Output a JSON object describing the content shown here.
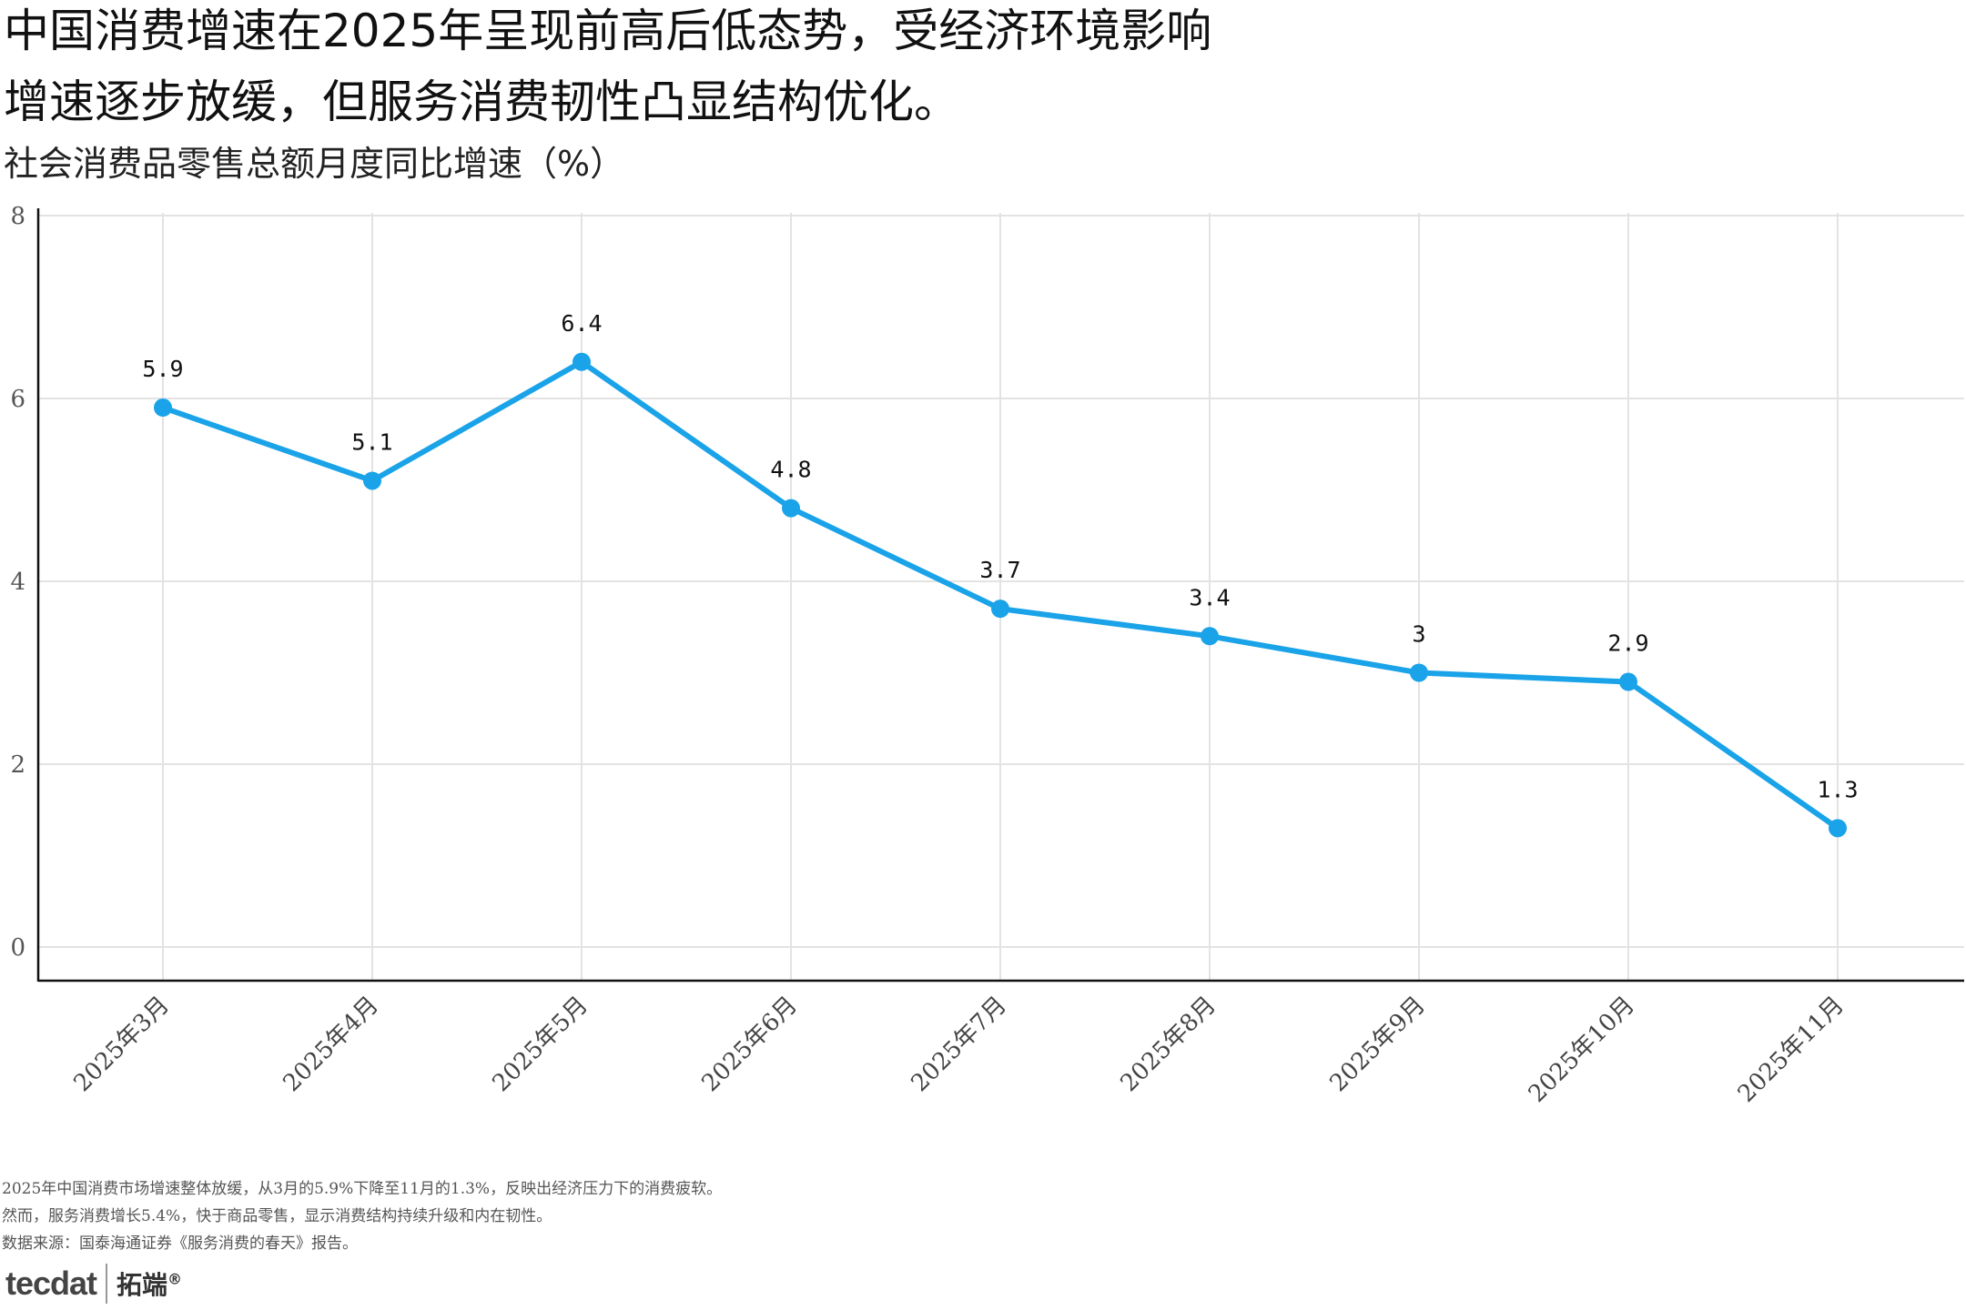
{
  "title": {
    "line1": "中国消费增速在2025年呈现前高后低态势，受经济环境影响",
    "line2": "增速逐步放缓，但服务消费韧性凸显结构优化。"
  },
  "chart_data": {
    "type": "line",
    "title": "社会消费品零售总额月度同比增速（%）",
    "xlabel": "",
    "ylabel": "",
    "categories": [
      "2025年3月",
      "2025年4月",
      "2025年5月",
      "2025年6月",
      "2025年7月",
      "2025年8月",
      "2025年9月",
      "2025年10月",
      "2025年11月"
    ],
    "series": [
      {
        "name": "社会消费品零售总额月度同比增速",
        "values": [
          5.9,
          5.1,
          6.4,
          4.8,
          3.7,
          3.4,
          3.0,
          2.9,
          1.3
        ],
        "labels": [
          "5.9",
          "5.1",
          "6.4",
          "4.8",
          "3.7",
          "3.4",
          "3",
          "2.9",
          "1.3"
        ],
        "color": "#1aa3e8"
      }
    ],
    "ylim": [
      0,
      8
    ],
    "yticks": [
      "0",
      "2",
      "4",
      "6",
      "8"
    ],
    "grid": true,
    "legend": "none"
  },
  "footnotes": [
    "2025年中国消费市场增速整体放缓，从3月的5.9%下降至11月的1.3%，反映出经济压力下的消费疲软。",
    "然而，服务消费增长5.4%，快于商品零售，显示消费结构持续升级和内在韧性。",
    "数据来源：国泰海通证券《服务消费的春天》报告。"
  ],
  "logo": {
    "mark": "tecdat",
    "cn": "拓端",
    "reg": "®"
  }
}
